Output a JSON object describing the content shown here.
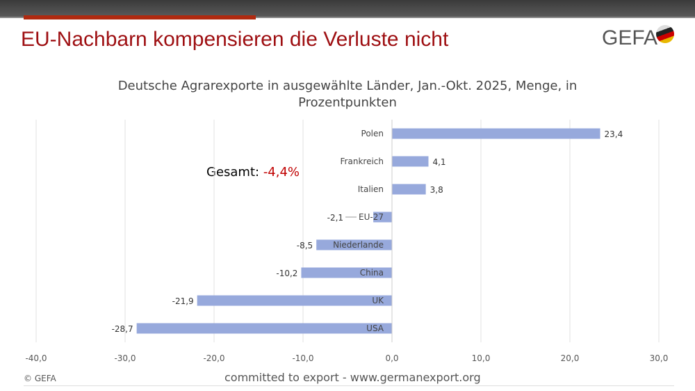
{
  "header": {
    "title": "EU-Nachbarn kompensieren die Verluste nicht",
    "logo": "GEFA"
  },
  "annotation": {
    "label": "Gesamt: ",
    "value": "-4,4%",
    "value_color": "#c00000"
  },
  "footer": {
    "copyright": "© GEFA",
    "tagline": "committed to export - www.germanexport.org"
  },
  "chart_data": {
    "type": "bar",
    "orientation": "horizontal",
    "title": "Deutsche Agrarexporte in ausgewählte Länder, Jan.-Okt. 2025, Menge, in Prozentpunkten",
    "categories": [
      "Polen",
      "Frankreich",
      "Italien",
      "EU-27",
      "Niederlande",
      "China",
      "UK",
      "USA"
    ],
    "values": [
      23.4,
      4.1,
      3.8,
      -2.1,
      -8.5,
      -10.2,
      -21.9,
      -28.7
    ],
    "data_labels": [
      "23,4",
      "4,1",
      "3,8",
      "-2,1",
      "-8,5",
      "-10,2",
      "-21,9",
      "-28,7"
    ],
    "xlim": [
      -40,
      30
    ],
    "xticks": [
      "-40,0",
      "-30,0",
      "-20,0",
      "-10,0",
      "0,0",
      "10,0",
      "20,0",
      "30,0"
    ],
    "bar_color": "#97a9dc",
    "grid": true
  }
}
